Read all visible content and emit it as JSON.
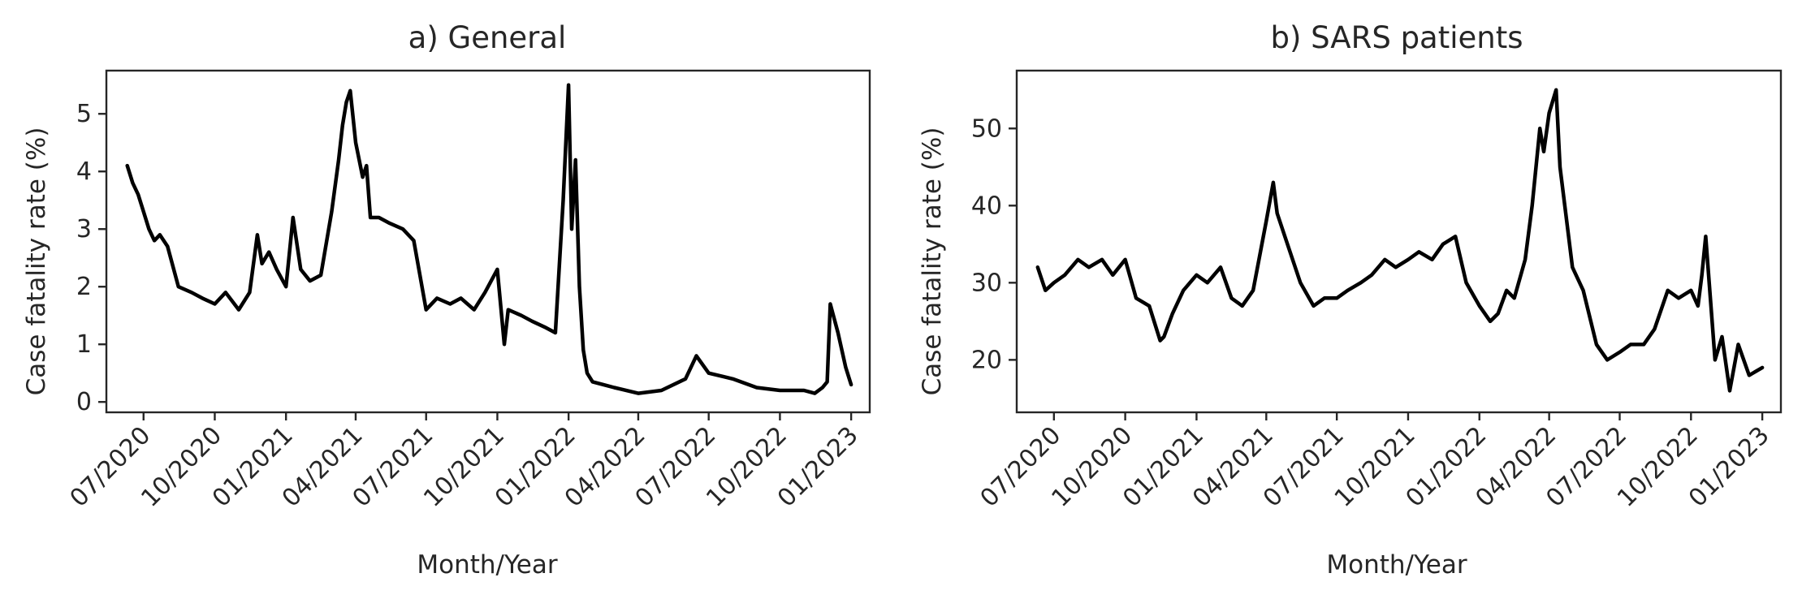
{
  "chart_data": [
    {
      "type": "line",
      "title": "a) General",
      "xlabel": "Month/Year",
      "ylabel": "Case fatality rate (%)",
      "xticks": [
        "07/2020",
        "10/2020",
        "01/2021",
        "04/2021",
        "07/2021",
        "10/2021",
        "01/2022",
        "04/2022",
        "07/2022",
        "10/2022",
        "01/2023"
      ],
      "yticks": [
        "0",
        "1",
        "2",
        "3",
        "4",
        "5"
      ],
      "xlim": [
        "2020-05-14",
        "2023-01-25"
      ],
      "ylim": [
        -0.18,
        5.75
      ],
      "grid": false,
      "series": [
        {
          "color": "#000000",
          "x": [
            "2020-06-10",
            "2020-06-17",
            "2020-06-24",
            "2020-07-01",
            "2020-07-08",
            "2020-07-15",
            "2020-07-22",
            "2020-08-01",
            "2020-08-15",
            "2020-09-01",
            "2020-09-15",
            "2020-10-01",
            "2020-10-15",
            "2020-11-01",
            "2020-11-15",
            "2020-11-25",
            "2020-12-01",
            "2020-12-10",
            "2020-12-20",
            "2021-01-01",
            "2021-01-10",
            "2021-01-20",
            "2021-02-01",
            "2021-02-15",
            "2021-03-01",
            "2021-03-10",
            "2021-03-15",
            "2021-03-20",
            "2021-03-25",
            "2021-04-01",
            "2021-04-10",
            "2021-04-15",
            "2021-04-20",
            "2021-05-01",
            "2021-05-15",
            "2021-06-01",
            "2021-06-15",
            "2021-07-01",
            "2021-07-15",
            "2021-08-01",
            "2021-08-15",
            "2021-09-01",
            "2021-09-15",
            "2021-10-01",
            "2021-10-10",
            "2021-10-15",
            "2021-11-01",
            "2021-11-15",
            "2021-12-01",
            "2021-12-15",
            "2021-12-25",
            "2022-01-01",
            "2022-01-05",
            "2022-01-10",
            "2022-01-15",
            "2022-01-20",
            "2022-01-25",
            "2022-02-01",
            "2022-02-15",
            "2022-03-01",
            "2022-04-01",
            "2022-05-01",
            "2022-06-01",
            "2022-06-15",
            "2022-07-01",
            "2022-08-01",
            "2022-09-01",
            "2022-10-01",
            "2022-11-01",
            "2022-11-15",
            "2022-11-25",
            "2022-12-01",
            "2022-12-05",
            "2022-12-15",
            "2022-12-25",
            "2023-01-01"
          ],
          "y": [
            4.1,
            3.8,
            3.6,
            3.3,
            3.0,
            2.8,
            2.9,
            2.7,
            2.0,
            1.9,
            1.8,
            1.7,
            1.9,
            1.6,
            1.9,
            2.9,
            2.4,
            2.6,
            2.3,
            2.0,
            3.2,
            2.3,
            2.1,
            2.2,
            3.3,
            4.2,
            4.8,
            5.2,
            5.4,
            4.5,
            3.9,
            4.1,
            3.2,
            3.2,
            3.1,
            3.0,
            2.8,
            1.6,
            1.8,
            1.7,
            1.8,
            1.6,
            1.9,
            2.3,
            1.0,
            1.6,
            1.5,
            1.4,
            1.3,
            1.2,
            3.5,
            5.5,
            3.0,
            4.2,
            2.0,
            0.9,
            0.5,
            0.35,
            0.3,
            0.25,
            0.15,
            0.2,
            0.4,
            0.8,
            0.5,
            0.4,
            0.25,
            0.2,
            0.2,
            0.15,
            0.25,
            0.35,
            1.7,
            1.2,
            0.6,
            0.3
          ]
        }
      ]
    },
    {
      "type": "line",
      "title": "b) SARS patients",
      "xlabel": "Month/Year",
      "ylabel": "Case fatality rate (%)",
      "xticks": [
        "07/2020",
        "10/2020",
        "01/2021",
        "04/2021",
        "07/2021",
        "10/2021",
        "01/2022",
        "04/2022",
        "07/2022",
        "10/2022",
        "01/2023"
      ],
      "yticks": [
        "20",
        "30",
        "40",
        "50"
      ],
      "xlim": [
        "2020-05-14",
        "2023-01-25"
      ],
      "ylim": [
        13.2,
        57.5
      ],
      "grid": false,
      "series": [
        {
          "color": "#000000",
          "x": [
            "2020-06-10",
            "2020-06-20",
            "2020-07-01",
            "2020-07-15",
            "2020-08-01",
            "2020-08-15",
            "2020-09-01",
            "2020-09-15",
            "2020-10-01",
            "2020-10-15",
            "2020-11-01",
            "2020-11-15",
            "2020-11-20",
            "2020-12-01",
            "2020-12-15",
            "2021-01-01",
            "2021-01-15",
            "2021-02-01",
            "2021-02-15",
            "2021-03-01",
            "2021-03-15",
            "2021-04-01",
            "2021-04-10",
            "2021-04-15",
            "2021-04-25",
            "2021-05-15",
            "2021-06-01",
            "2021-06-15",
            "2021-07-01",
            "2021-07-15",
            "2021-08-01",
            "2021-08-15",
            "2021-09-01",
            "2021-09-15",
            "2021-10-01",
            "2021-10-15",
            "2021-11-01",
            "2021-11-15",
            "2021-12-01",
            "2021-12-15",
            "2022-01-01",
            "2022-01-15",
            "2022-01-25",
            "2022-02-05",
            "2022-02-15",
            "2022-03-01",
            "2022-03-10",
            "2022-03-20",
            "2022-03-25",
            "2022-04-01",
            "2022-04-10",
            "2022-04-15",
            "2022-05-01",
            "2022-05-15",
            "2022-06-01",
            "2022-06-15",
            "2022-07-01",
            "2022-07-15",
            "2022-08-01",
            "2022-08-15",
            "2022-09-01",
            "2022-09-15",
            "2022-10-01",
            "2022-10-10",
            "2022-10-15",
            "2022-10-20",
            "2022-11-01",
            "2022-11-10",
            "2022-11-20",
            "2022-12-01",
            "2022-12-15",
            "2023-01-01"
          ],
          "y": [
            32,
            29,
            30,
            31,
            33,
            32,
            33,
            31,
            33,
            28,
            27,
            22.5,
            23,
            26,
            29,
            31,
            30,
            32,
            28,
            27,
            29,
            38,
            43,
            39,
            36,
            30,
            27,
            28,
            28,
            29,
            30,
            31,
            33,
            32,
            33,
            34,
            33,
            35,
            36,
            30,
            27,
            25,
            26,
            29,
            28,
            33,
            40,
            50,
            47,
            52,
            55,
            45,
            32,
            29,
            22,
            20,
            21,
            22,
            22,
            24,
            29,
            28,
            29,
            27,
            31,
            36,
            20,
            23,
            16,
            22,
            18,
            19
          ]
        }
      ]
    }
  ]
}
